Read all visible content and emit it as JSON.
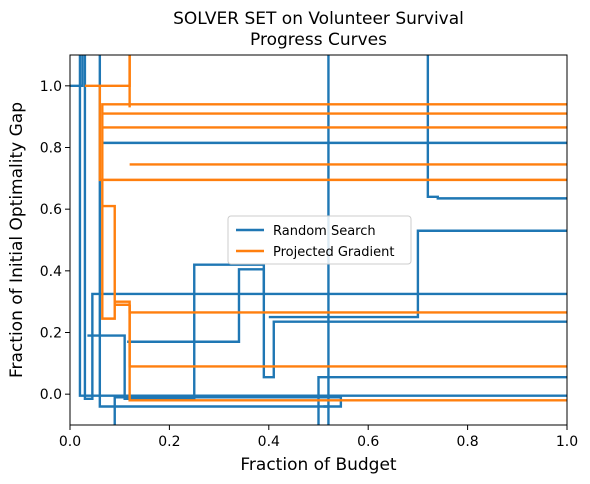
{
  "chart_data": {
    "type": "line",
    "title_lines": [
      "SOLVER SET on Volunteer Survival",
      "Progress Curves"
    ],
    "xlabel": "Fraction of Budget",
    "ylabel": "Fraction of Initial Optimality Gap",
    "xlim": [
      0,
      1
    ],
    "ylim": [
      -0.1,
      1.1
    ],
    "xticks": [
      0,
      0.2,
      0.4,
      0.6,
      0.8,
      1.0
    ],
    "xtick_labels": [
      "0.0",
      "0.2",
      "0.4",
      "0.6",
      "0.8",
      "1.0"
    ],
    "yticks": [
      0,
      0.2,
      0.4,
      0.6,
      0.8,
      1.0
    ],
    "ytick_labels": [
      "0.0",
      "0.2",
      "0.4",
      "0.6",
      "0.8",
      "1.0"
    ],
    "grid": false,
    "legend_position": "center",
    "series": [
      {
        "name": "Random Search",
        "color": "#1f77b4",
        "curves": [
          [
            [
              0,
              1.0
            ],
            [
              0.025,
              1.0
            ],
            [
              0.025,
              1.2
            ]
          ],
          [
            [
              0.03,
              1.2
            ],
            [
              0.03,
              -0.015
            ],
            [
              0.045,
              -0.015
            ],
            [
              0.045,
              0.325
            ],
            [
              1.0,
              0.325
            ]
          ],
          [
            [
              0.02,
              1.2
            ],
            [
              0.02,
              -0.005
            ],
            [
              1.0,
              -0.005
            ]
          ],
          [
            [
              0.035,
              0.19
            ],
            [
              0.11,
              0.19
            ],
            [
              0.11,
              -0.015
            ],
            [
              0.25,
              -0.015
            ],
            [
              0.25,
              0.42
            ],
            [
              0.39,
              0.42
            ],
            [
              0.39,
              0.325
            ]
          ],
          [
            [
              0.06,
              1.2
            ],
            [
              0.06,
              -0.04
            ],
            [
              0.52,
              -0.04
            ]
          ],
          [
            [
              0.065,
              0.815
            ],
            [
              1.0,
              0.815
            ]
          ],
          [
            [
              0.09,
              -0.1
            ],
            [
              0.09,
              -0.01
            ],
            [
              0.545,
              -0.01
            ],
            [
              0.545,
              -0.04
            ],
            [
              0.51,
              -0.04
            ]
          ],
          [
            [
              0.115,
              0.17
            ],
            [
              0.34,
              0.17
            ],
            [
              0.34,
              0.405
            ],
            [
              0.39,
              0.405
            ],
            [
              0.39,
              0.055
            ],
            [
              0.41,
              0.055
            ],
            [
              0.41,
              0.235
            ],
            [
              1.0,
              0.235
            ]
          ],
          [
            [
              0.5,
              -0.1
            ],
            [
              0.5,
              0.055
            ],
            [
              1.0,
              0.055
            ]
          ],
          [
            [
              0.52,
              1.2
            ],
            [
              0.52,
              -0.1
            ]
          ],
          [
            [
              0.4,
              0.25
            ],
            [
              0.7,
              0.25
            ],
            [
              0.7,
              0.53
            ],
            [
              1.0,
              0.53
            ]
          ],
          [
            [
              0.72,
              1.2
            ],
            [
              0.72,
              0.64
            ],
            [
              0.74,
              0.64
            ],
            [
              0.74,
              0.635
            ],
            [
              1.0,
              0.635
            ]
          ]
        ]
      },
      {
        "name": "Projected Gradient",
        "color": "#ff7f0e",
        "curves": [
          [
            [
              0.03,
              1.0
            ],
            [
              0.12,
              1.0
            ],
            [
              0.12,
              1.2
            ]
          ],
          [
            [
              0.06,
              1.0
            ],
            [
              0.06,
              0.695
            ],
            [
              1.0,
              0.695
            ]
          ],
          [
            [
              0.065,
              0.61
            ],
            [
              0.09,
              0.61
            ],
            [
              0.09,
              0.245
            ],
            [
              0.065,
              0.245
            ],
            [
              0.065,
              0.94
            ],
            [
              1.0,
              0.94
            ]
          ],
          [
            [
              0.065,
              0.91
            ],
            [
              1.0,
              0.91
            ]
          ],
          [
            [
              0.065,
              0.865
            ],
            [
              1.0,
              0.865
            ]
          ],
          [
            [
              0.12,
              0.745
            ],
            [
              1.0,
              0.745
            ]
          ],
          [
            [
              0.09,
              0.3
            ],
            [
              0.12,
              0.3
            ],
            [
              0.12,
              0.29
            ],
            [
              0.09,
              0.29
            ]
          ],
          [
            [
              0.12,
              0.29
            ],
            [
              0.12,
              0.265
            ],
            [
              1.0,
              0.265
            ]
          ],
          [
            [
              0.12,
              0.29
            ],
            [
              0.12,
              0.09
            ],
            [
              1.0,
              0.09
            ]
          ],
          [
            [
              0.12,
              0.29
            ],
            [
              0.12,
              -0.02
            ],
            [
              1.0,
              -0.02
            ]
          ],
          [
            [
              0.12,
              1.2
            ],
            [
              0.12,
              0.93
            ]
          ]
        ]
      }
    ]
  }
}
